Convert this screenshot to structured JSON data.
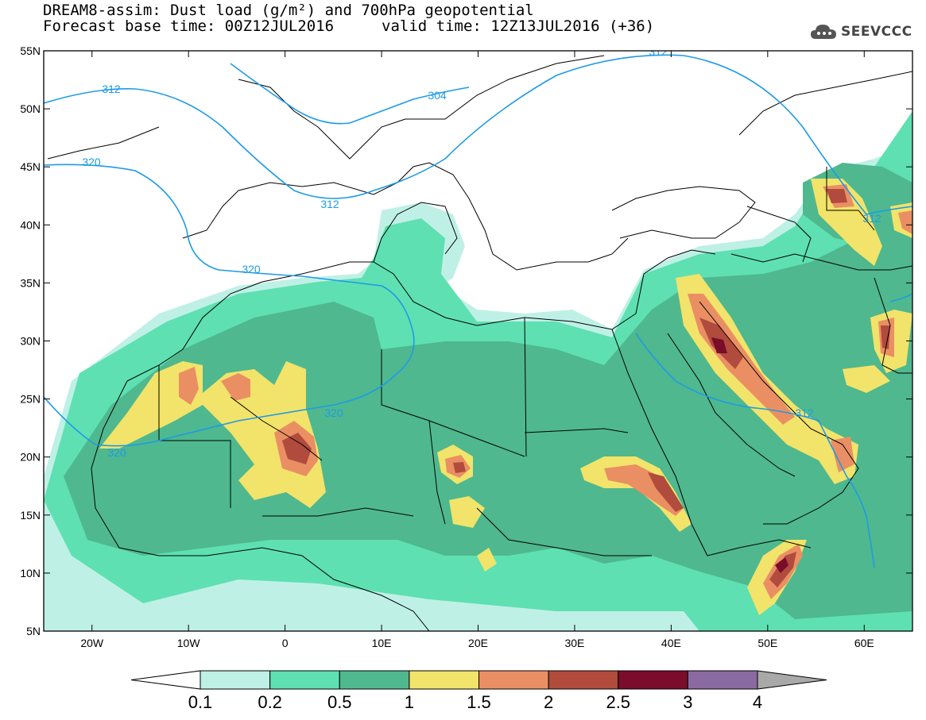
{
  "title": {
    "line1": "DREAM8-assim: Dust load (g/m²) and 700hPa geopotential",
    "line2_left": "Forecast base time: 00Z12JUL2016",
    "line2_right": "valid time: 12Z13JUL2016 (+36)"
  },
  "logo": {
    "icon": "cloud-icon",
    "text": "SEEVCCC"
  },
  "map": {
    "lat_labels": [
      "55N",
      "50N",
      "45N",
      "40N",
      "35N",
      "30N",
      "25N",
      "20N",
      "15N",
      "10N",
      "5N"
    ],
    "lat_values": [
      55,
      50,
      45,
      40,
      35,
      30,
      25,
      20,
      15,
      10,
      5
    ],
    "lon_labels": [
      "20W",
      "10W",
      "0",
      "10E",
      "20E",
      "30E",
      "40E",
      "50E",
      "60E"
    ],
    "lon_values": [
      -20,
      -10,
      0,
      10,
      20,
      30,
      40,
      50,
      60
    ],
    "lon_range": [
      -25,
      65
    ],
    "lat_range": [
      5,
      55
    ],
    "contour_labels": [
      "312",
      "312",
      "312",
      "312",
      "312",
      "320",
      "320",
      "320",
      "320",
      "304"
    ]
  },
  "colorbar": {
    "labels": [
      "0.1",
      "0.2",
      "0.5",
      "1",
      "1.5",
      "2",
      "2.5",
      "3",
      "4"
    ],
    "colors": [
      "#ffffff",
      "#bff0e6",
      "#5ee0b2",
      "#4fb88e",
      "#f2e36a",
      "#ea8f63",
      "#b14b3d",
      "#7a0d2a",
      "#8a6aa0",
      "#a9a9a9"
    ]
  },
  "colors": {
    "contour": "#1e9be6",
    "dust_low": "#bff0e6",
    "dust_mid": "#5ee0b2",
    "dust_dark": "#4fb88e",
    "dust_yellow": "#f2e36a",
    "dust_orange": "#ea8f63",
    "dust_brown": "#b14b3d",
    "dust_max": "#7a0d2a"
  }
}
